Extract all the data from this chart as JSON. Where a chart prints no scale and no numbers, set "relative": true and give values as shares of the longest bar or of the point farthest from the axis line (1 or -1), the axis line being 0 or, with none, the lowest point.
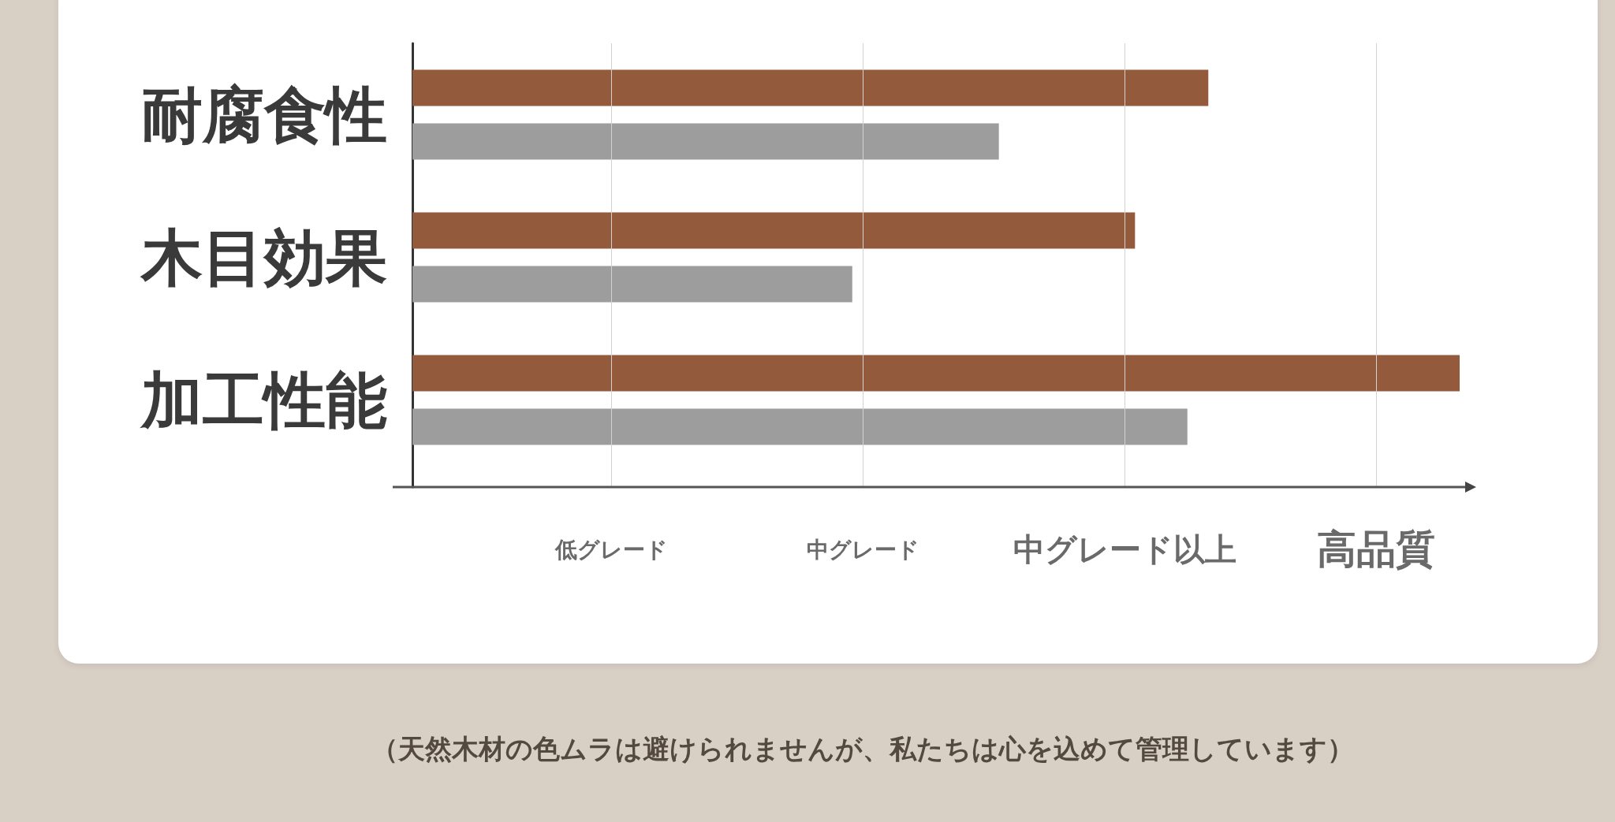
{
  "chart_data": {
    "type": "bar",
    "orientation": "horizontal",
    "relative": true,
    "categories": [
      "耐腐食性",
      "木目効果",
      "加工性能"
    ],
    "series": [
      {
        "color": "#935a3c",
        "values": [
          0.76,
          0.69,
          1
        ]
      },
      {
        "color": "#9e9d9e",
        "values": [
          0.56,
          0.42,
          0.74
        ]
      }
    ],
    "ref_lines": [
      {
        "axis": "x",
        "value": 0.19,
        "label": "低グレード",
        "color": "#d2d2d2"
      },
      {
        "axis": "x",
        "value": 0.43,
        "label": "中グレード",
        "color": "#d2d2d2"
      },
      {
        "axis": "x",
        "value": 0.68,
        "label": "中グレード以上",
        "color": "#d2d2d2"
      },
      {
        "axis": "x",
        "value": 0.92,
        "label": "高品質",
        "color": "#d2d2d2"
      }
    ],
    "annotations": [
      "（天然木材の色ムラは避けられませんが、私たちは心を込めて管理しています）"
    ]
  }
}
